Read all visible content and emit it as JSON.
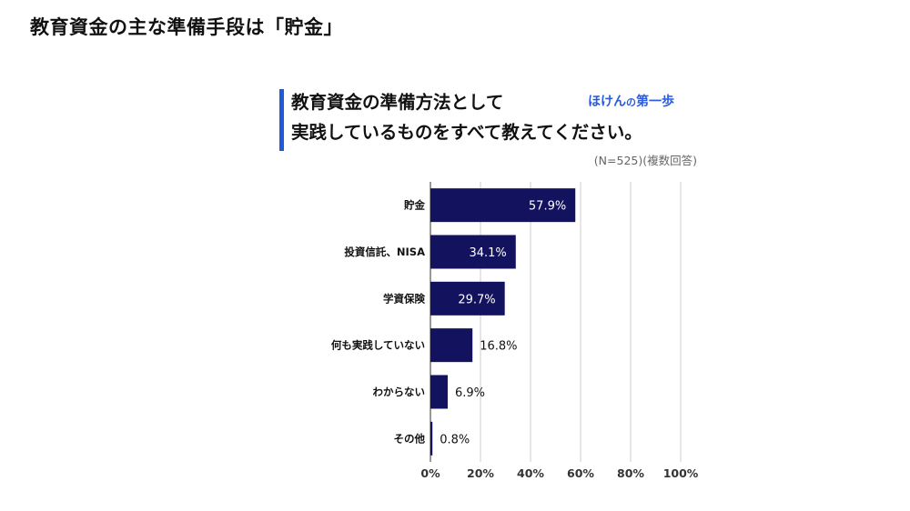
{
  "page": {
    "heading": "教育資金の主な準備手段は「貯金」"
  },
  "card": {
    "title_line1": "教育資金の準備方法として",
    "title_line2": "実践しているものをすべて教えてください。",
    "brand_main": "ほけん",
    "brand_mid": "の",
    "brand_end": "第一歩",
    "note": "(N=525)(複数回答)"
  },
  "colors": {
    "bar": "#12125e",
    "accent": "#1f5bd6",
    "grid": "#cccccc",
    "label_inside": "#ffffff",
    "label_outside": "#111111"
  },
  "chart_data": {
    "type": "bar",
    "orientation": "horizontal",
    "categories": [
      "貯金",
      "投資信託、NISA",
      "学資保険",
      "何も実践していない",
      "わからない",
      "その他"
    ],
    "values": [
      57.9,
      34.1,
      29.7,
      16.8,
      6.9,
      0.8
    ],
    "value_labels": [
      "57.9%",
      "34.1%",
      "29.7%",
      "16.8%",
      "6.9%",
      "0.8%"
    ],
    "xlim": [
      0,
      100
    ],
    "xticks": [
      "0%",
      "20%",
      "40%",
      "60%",
      "80%",
      "100%"
    ],
    "xtick_values": [
      0,
      20,
      40,
      60,
      80,
      100
    ],
    "grid": true
  }
}
